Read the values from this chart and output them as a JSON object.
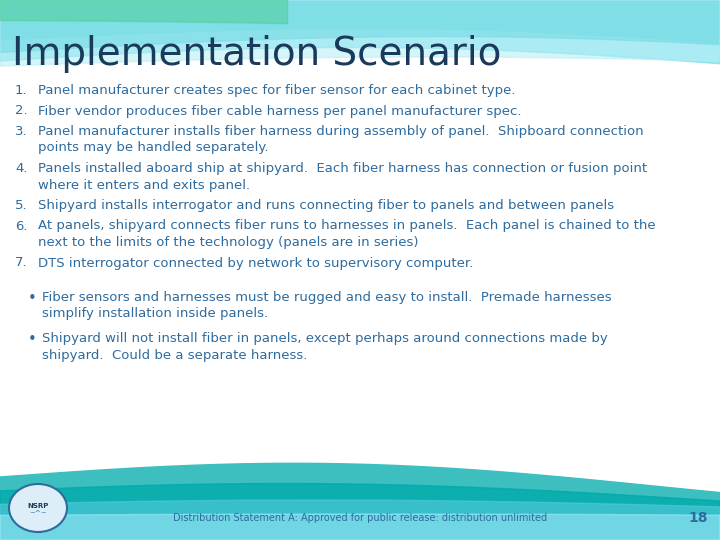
{
  "title": "Implementation Scenario",
  "title_color": "#1a3a5c",
  "title_fontsize": 28,
  "bg_color": "#ffffff",
  "text_color": "#2e6b9e",
  "numbered_items": [
    "Panel manufacturer creates spec for fiber sensor for each cabinet type.",
    "Fiber vendor produces fiber cable harness per panel manufacturer spec.",
    "Panel manufacturer installs fiber harness during assembly of panel.  Shipboard connection points may be handled separately.",
    "Panels installed aboard ship at shipyard.  Each fiber harness has connection or fusion point where it enters and exits panel.",
    "Shipyard installs interrogator and runs connecting fiber to panels and between panels",
    "At panels, shipyard connects fiber runs to harnesses in panels.  Each panel is chained to the next to the limits of the technology (panels are in series)",
    "DTS interrogator connected by network to supervisory computer."
  ],
  "bullet_items": [
    "Fiber sensors and harnesses must be rugged and easy to install.  Premade harnesses simplify installation inside panels.",
    "Shipyard will not install fiber in panels, except perhaps around connections made by shipyard.  Could be a separate harness."
  ],
  "footer_text": "Distribution Statement A: Approved for public release: distribution unlimited",
  "page_number": "18",
  "item_fontsize": 9.5,
  "bullet_fontsize": 9.5,
  "footer_fontsize": 7,
  "page_num_fontsize": 10
}
